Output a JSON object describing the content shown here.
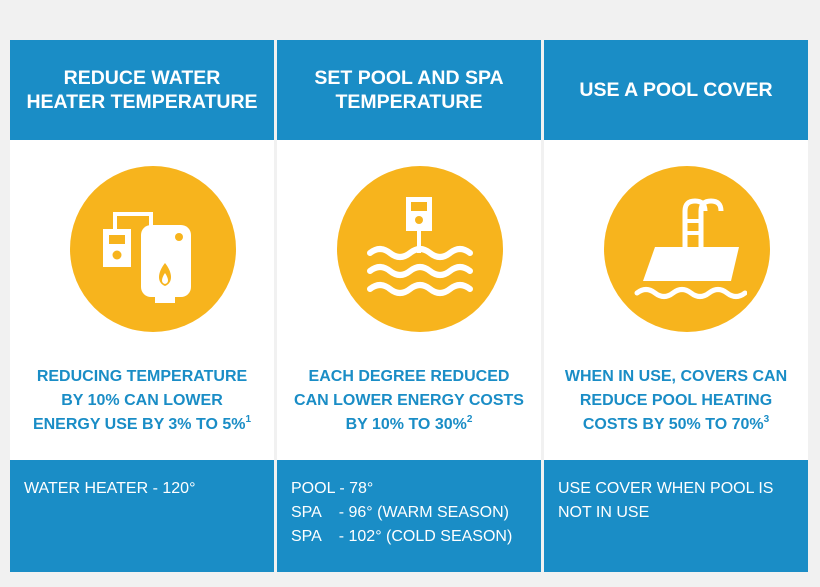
{
  "columns": [
    {
      "heading": "REDUCE WATER HEATER TEMPERATURE",
      "icon": "water-heater-icon",
      "desc_lines": [
        "REDUCING TEMPERATURE",
        "BY 10% CAN LOWER",
        "ENERGY USE BY 3% TO 5%"
      ],
      "footnote": "1",
      "footer_lines": [
        "WATER HEATER - 120°"
      ]
    },
    {
      "heading": "SET POOL AND SPA TEMPERATURE",
      "icon": "pool-thermostat-icon",
      "desc_lines": [
        "EACH DEGREE REDUCED",
        "CAN LOWER ENERGY COSTS",
        "BY 10% TO 30%"
      ],
      "footnote": "2",
      "footer_lines": [
        "POOL - 78°",
        "SPA    - 96° (WARM SEASON)",
        "SPA    - 102° (COLD SEASON)"
      ]
    },
    {
      "heading": "USE A POOL COVER",
      "icon": "pool-cover-icon",
      "desc_lines": [
        "WHEN IN USE, COVERS CAN",
        "REDUCE POOL HEATING",
        "COSTS BY 50% TO 70%"
      ],
      "footnote": "3",
      "footer_lines": [
        "USE COVER WHEN POOL IS",
        "NOT IN USE"
      ]
    }
  ],
  "colors": {
    "blue": "#1a8dc6",
    "yellow": "#f7b41d",
    "white": "#ffffff"
  }
}
